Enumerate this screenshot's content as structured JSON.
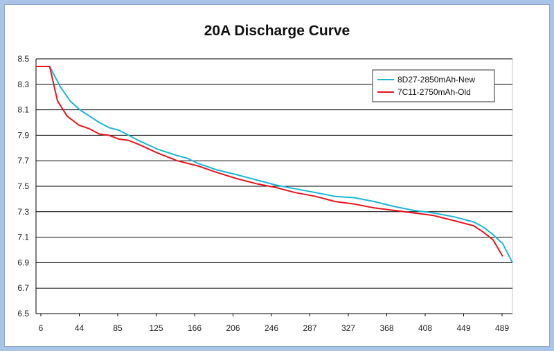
{
  "chart_data": {
    "type": "line",
    "title": "20A Discharge Curve",
    "xlabel": "",
    "ylabel": "",
    "x_tick_labels": [
      "6",
      "44",
      "85",
      "125",
      "166",
      "206",
      "246",
      "287",
      "327",
      "368",
      "408",
      "449",
      "489"
    ],
    "y_ticks": [
      6.5,
      6.7,
      6.9,
      7.1,
      7.3,
      7.5,
      7.7,
      7.9,
      8.1,
      8.3,
      8.5
    ],
    "ylim": [
      6.5,
      8.5
    ],
    "xlim": [
      0,
      489
    ],
    "grid": "horizontal",
    "legend_position": "top-right",
    "series": [
      {
        "name": "8D27-2850mAh-New",
        "color": "#1ab6d8",
        "x": [
          0,
          14,
          25,
          35,
          45,
          55,
          65,
          75,
          85,
          95,
          105,
          125,
          145,
          155,
          166,
          185,
          206,
          226,
          246,
          266,
          287,
          307,
          327,
          347,
          368,
          388,
          408,
          429,
          449,
          459,
          469,
          479,
          489
        ],
        "y": [
          8.44,
          8.44,
          8.28,
          8.17,
          8.1,
          8.05,
          8.0,
          7.96,
          7.94,
          7.9,
          7.86,
          7.79,
          7.74,
          7.72,
          7.68,
          7.63,
          7.59,
          7.55,
          7.51,
          7.48,
          7.45,
          7.42,
          7.41,
          7.38,
          7.34,
          7.31,
          7.29,
          7.26,
          7.22,
          7.18,
          7.12,
          7.05,
          6.9
        ]
      },
      {
        "name": "7C11-2750mAh-Old",
        "color": "#e8141b",
        "x": [
          0,
          14,
          22,
          32,
          44,
          55,
          65,
          75,
          85,
          95,
          105,
          125,
          145,
          166,
          185,
          206,
          226,
          246,
          266,
          287,
          307,
          327,
          347,
          368,
          388,
          408,
          429,
          449,
          459,
          469,
          479
        ],
        "y": [
          8.44,
          8.44,
          8.17,
          8.05,
          7.98,
          7.95,
          7.91,
          7.9,
          7.87,
          7.86,
          7.83,
          7.76,
          7.7,
          7.66,
          7.61,
          7.56,
          7.52,
          7.49,
          7.45,
          7.42,
          7.38,
          7.36,
          7.33,
          7.31,
          7.29,
          7.27,
          7.23,
          7.19,
          7.14,
          7.08,
          6.95
        ]
      }
    ]
  }
}
